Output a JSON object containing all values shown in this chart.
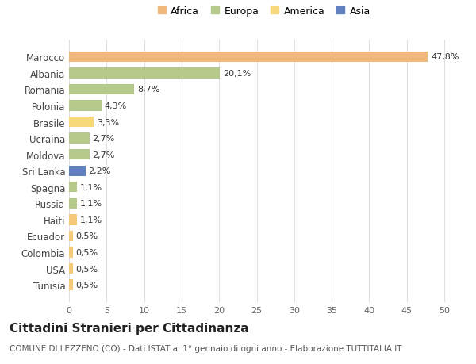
{
  "categories": [
    "Tunisia",
    "USA",
    "Colombia",
    "Ecuador",
    "Haiti",
    "Russia",
    "Spagna",
    "Sri Lanka",
    "Moldova",
    "Ucraina",
    "Brasile",
    "Polonia",
    "Romania",
    "Albania",
    "Marocco"
  ],
  "values": [
    0.5,
    0.5,
    0.5,
    0.5,
    1.1,
    1.1,
    1.1,
    2.2,
    2.7,
    2.7,
    3.3,
    4.3,
    8.7,
    20.1,
    47.8
  ],
  "colors": [
    "#f5c87a",
    "#f5c87a",
    "#f5c87a",
    "#f5c87a",
    "#f5c87a",
    "#b5c98a",
    "#b5c98a",
    "#6080c0",
    "#b5c98a",
    "#b5c98a",
    "#f5d97a",
    "#b5c98a",
    "#b5c98a",
    "#b5c98a",
    "#f0b87a"
  ],
  "labels": [
    "0,5%",
    "0,5%",
    "0,5%",
    "0,5%",
    "1,1%",
    "1,1%",
    "1,1%",
    "2,2%",
    "2,7%",
    "2,7%",
    "3,3%",
    "4,3%",
    "8,7%",
    "20,1%",
    "47,8%"
  ],
  "legend": [
    {
      "label": "Africa",
      "color": "#f0b87a"
    },
    {
      "label": "Europa",
      "color": "#b5c98a"
    },
    {
      "label": "America",
      "color": "#f5d97a"
    },
    {
      "label": "Asia",
      "color": "#6080c0"
    }
  ],
  "title": "Cittadini Stranieri per Cittadinanza",
  "subtitle": "COMUNE DI LEZZENO (CO) - Dati ISTAT al 1° gennaio di ogni anno - Elaborazione TUTTITALIA.IT",
  "xlim": [
    0,
    52
  ],
  "xticks": [
    0,
    5,
    10,
    15,
    20,
    25,
    30,
    35,
    40,
    45,
    50
  ],
  "background_color": "#ffffff",
  "grid_color": "#e0e0e0",
  "bar_height": 0.65,
  "label_fontsize": 8,
  "ytick_fontsize": 8.5,
  "xtick_fontsize": 8
}
